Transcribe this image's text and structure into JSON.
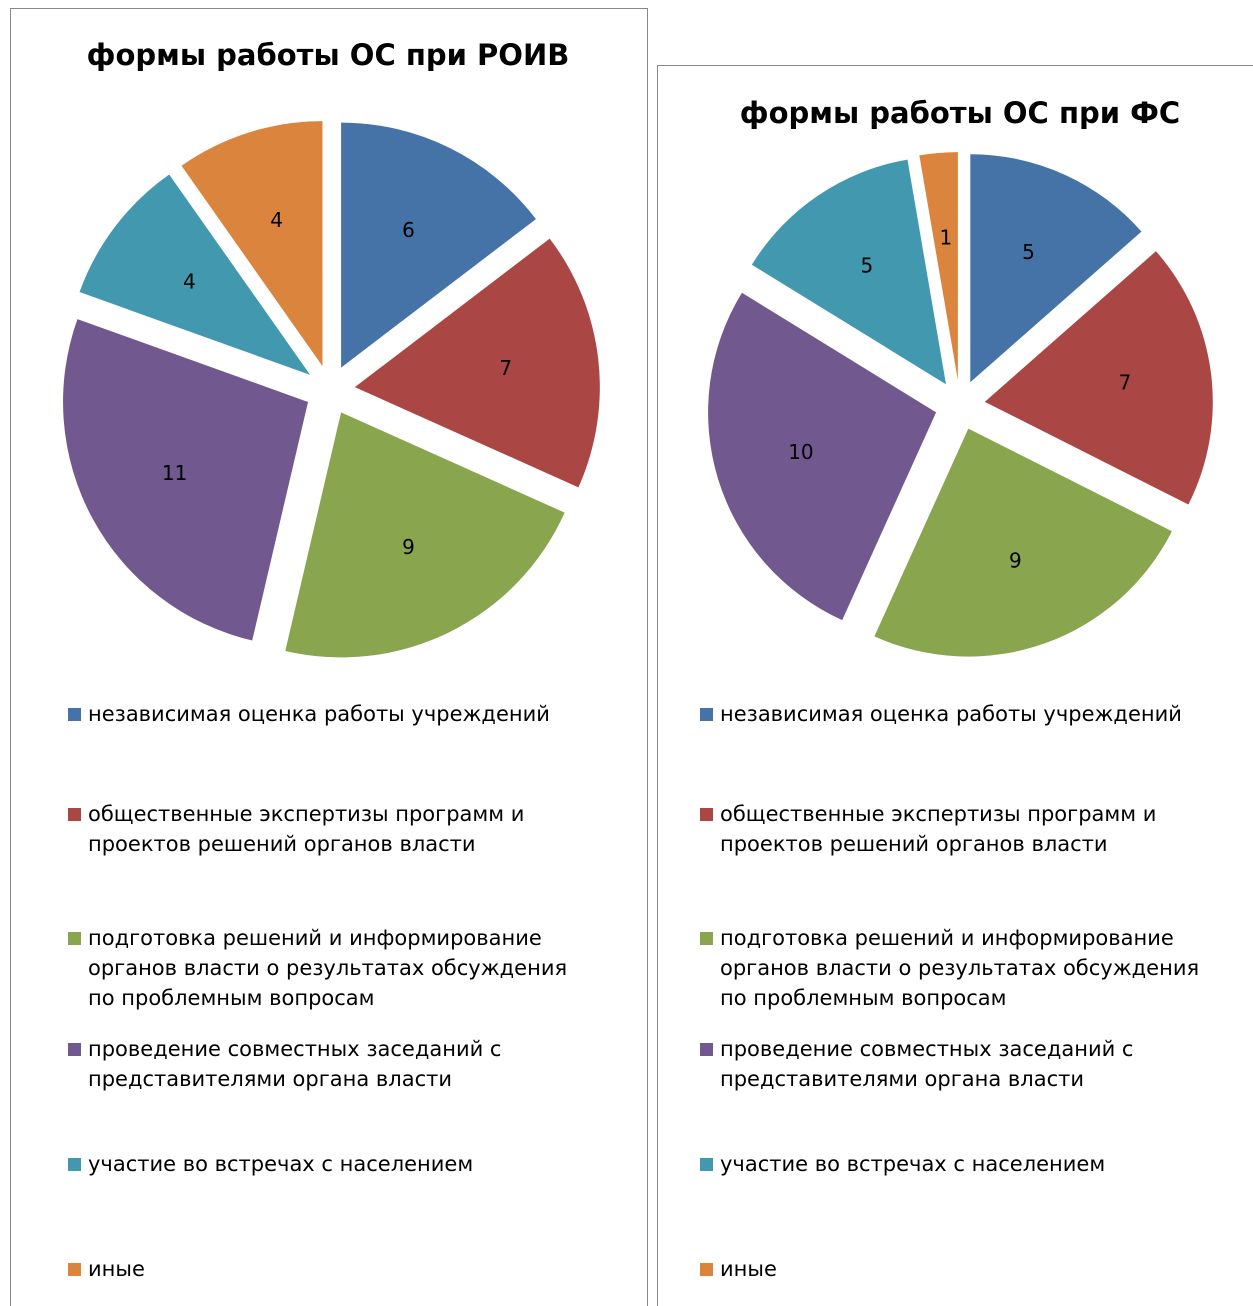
{
  "chart_data": [
    {
      "type": "pie",
      "title": "формы работы ОС при РОИВ",
      "categories": [
        "независимая оценка работы учреждений",
        "общественные экспертизы программ и проектов решений органов власти",
        "подготовка решений и информирование органов власти о результатах обсуждения по проблемным вопросам",
        "проведение совместных заседаний с представителями органа власти",
        "участие во встречах с населением",
        "иные"
      ],
      "values": [
        6,
        7,
        9,
        11,
        4,
        4
      ],
      "colors": [
        "#4572a7",
        "#aa4643",
        "#89a54e",
        "#71588f",
        "#4198af",
        "#db843d"
      ],
      "legend": "bottom"
    },
    {
      "type": "pie",
      "title": "формы работы ОС при ФС",
      "categories": [
        "независимая оценка работы учреждений",
        "общественные экспертизы программ и проектов решений органов власти",
        "подготовка решений и информирование органов власти о результатах обсуждения по проблемным вопросам",
        "проведение совместных заседаний с представителями органа власти",
        "участие во встречах с населением",
        "иные"
      ],
      "values": [
        5,
        7,
        9,
        10,
        5,
        1
      ],
      "colors": [
        "#4572a7",
        "#aa4643",
        "#89a54e",
        "#71588f",
        "#4198af",
        "#db843d"
      ],
      "legend": "bottom"
    }
  ]
}
